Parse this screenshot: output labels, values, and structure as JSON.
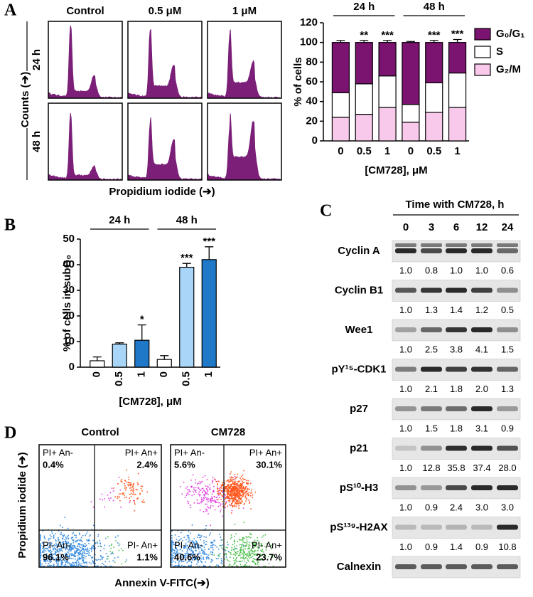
{
  "panel_letters": [
    "A",
    "B",
    "C",
    "D"
  ],
  "histograms": {
    "columns": [
      "Control",
      "0.5 μM",
      "1 μM"
    ],
    "rows": [
      "24 h",
      "48 h"
    ],
    "y_label": "Counts (➔)",
    "x_label": "Propidium iodide (➔)",
    "color": "#7b1f78"
  },
  "chart_data": [
    {
      "type": "stacked_bar",
      "categories": [
        "0",
        "0.5",
        "1",
        "0",
        "0.5",
        "1"
      ],
      "groups": [
        "24 h",
        "48 h"
      ],
      "x_label": "[CM728], μM",
      "y_label": "% of cells",
      "ylim": [
        0,
        120
      ],
      "yticks": [
        0,
        20,
        40,
        60,
        80,
        100,
        120
      ],
      "series": [
        {
          "name": "G₂/M",
          "color": "#f9c9ec",
          "values": [
            24,
            27,
            34,
            19,
            29,
            34
          ],
          "errors": [
            2,
            2,
            6,
            2,
            2,
            6
          ],
          "significance": [
            null,
            null,
            "***",
            null,
            "**",
            "***"
          ],
          "significance_color": "#000000"
        },
        {
          "name": "S",
          "color": "#ffffff",
          "values": [
            25,
            31,
            32,
            18,
            30,
            35
          ],
          "errors": [
            1,
            1,
            1,
            1,
            1,
            1
          ],
          "significance": [
            null,
            "*",
            "*",
            null,
            "**",
            "***"
          ],
          "significance_color": "#ffffff"
        },
        {
          "name": "G₀/G₁",
          "color": "#7b1470",
          "values": [
            51,
            42,
            34,
            63,
            41,
            31
          ],
          "errors": [
            2,
            2,
            2,
            1,
            2,
            3
          ],
          "significance": [
            null,
            "**",
            "***",
            null,
            "***",
            "***"
          ],
          "significance_color": "#000000"
        }
      ]
    },
    {
      "type": "bar",
      "categories": [
        "0",
        "0.5",
        "1",
        "0",
        "0.5",
        "1"
      ],
      "groups": [
        "24 h",
        "48 h"
      ],
      "x_label": "[CM728], μM",
      "y_label": "% of cells in subG₀",
      "ylim": [
        0,
        50
      ],
      "yticks": [
        0,
        10,
        20,
        30,
        40,
        50
      ],
      "values": [
        2.5,
        9,
        10.5,
        3,
        39,
        42
      ],
      "errors": [
        1.5,
        0.5,
        6,
        1.5,
        1.5,
        5
      ],
      "colors": [
        "#ffffff",
        "#a9d6f8",
        "#1f78c8",
        "#ffffff",
        "#a9d6f8",
        "#1f78c8"
      ],
      "significance": [
        null,
        null,
        "*",
        null,
        "***",
        "***"
      ]
    }
  ],
  "blot": {
    "title": "Time with CM728, h",
    "times": [
      "0",
      "3",
      "6",
      "12",
      "24"
    ],
    "rows": [
      {
        "name": "Cyclin A",
        "values": [
          "1.0",
          "0.8",
          "1.0",
          "1.0",
          "0.6"
        ]
      },
      {
        "name": "Cyclin B1",
        "values": [
          "1.0",
          "1.3",
          "1.4",
          "1.2",
          "0.5"
        ]
      },
      {
        "name": "Wee1",
        "values": [
          "1.0",
          "2.5",
          "3.8",
          "4.1",
          "1.5"
        ]
      },
      {
        "name": "pY¹⁵-CDK1",
        "values": [
          "1.0",
          "2.1",
          "1.8",
          "2.0",
          "1.3"
        ]
      },
      {
        "name": "p27",
        "values": [
          "1.0",
          "1.5",
          "1.8",
          "3.1",
          "0.9"
        ]
      },
      {
        "name": "p21",
        "values": [
          "1.0",
          "12.8",
          "35.8",
          "37.4",
          "28.0"
        ]
      },
      {
        "name": "pS¹⁰-H3",
        "values": [
          "1.0",
          "0.9",
          "2.4",
          "3.0",
          "3.0"
        ]
      },
      {
        "name": "pS¹³⁹-H2AX",
        "values": [
          "1.0",
          "0.9",
          "1.4",
          "0.9",
          "10.8"
        ]
      },
      {
        "name": "Calnexin"
      }
    ]
  },
  "flow": {
    "x_label": "Annexin V-FITC(➔)",
    "y_label": "Propidium iodide (➔)",
    "plots": [
      {
        "title": "Control",
        "quadrants": {
          "upper_left": {
            "label": "PI+ An-",
            "percent": "0.4%"
          },
          "upper_right": {
            "label": "PI+ An+",
            "percent": "2.4%"
          },
          "lower_left": {
            "label": "PI- An-",
            "percent": "96.1%"
          },
          "lower_right": {
            "label": "PI- An+",
            "percent": "1.1%"
          }
        }
      },
      {
        "title": "CM728",
        "quadrants": {
          "upper_left": {
            "label": "PI+ An-",
            "percent": "5.6%"
          },
          "upper_right": {
            "label": "PI+ An+",
            "percent": "30.1%"
          },
          "lower_left": {
            "label": "PI- An-",
            "percent": "40.6%"
          },
          "lower_right": {
            "label": "PI- An+",
            "percent": "23.7%"
          }
        }
      }
    ]
  }
}
